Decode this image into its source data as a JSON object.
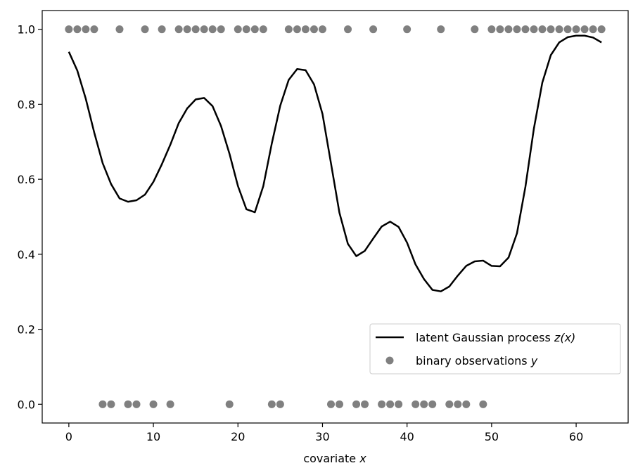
{
  "chart_data": {
    "type": "line",
    "title": "",
    "xlabel": "covariate x",
    "ylabel": "",
    "xlim": [
      -3.15,
      66.15
    ],
    "ylim": [
      -0.05,
      1.05
    ],
    "xticks": [
      0,
      10,
      20,
      30,
      40,
      50,
      60
    ],
    "yticks": [
      0.0,
      0.2,
      0.4,
      0.6,
      0.8,
      1.0
    ],
    "xtick_labels": [
      "0",
      "10",
      "20",
      "30",
      "40",
      "50",
      "60"
    ],
    "ytick_labels": [
      "0.0",
      "0.2",
      "0.4",
      "0.6",
      "0.8",
      "1.0"
    ],
    "grid": false,
    "legend_position": "lower-right",
    "series": [
      {
        "name": "latent Gaussian process z(x)",
        "type": "line",
        "color": "#000000",
        "x": [
          0,
          1,
          2,
          3,
          4,
          5,
          6,
          7,
          8,
          9,
          10,
          11,
          12,
          13,
          14,
          15,
          16,
          17,
          18,
          19,
          20,
          21,
          22,
          23,
          24,
          25,
          26,
          27,
          28,
          29,
          30,
          31,
          32,
          33,
          34,
          35,
          36,
          37,
          38,
          39,
          40,
          41,
          42,
          43,
          44,
          45,
          46,
          47,
          48,
          49,
          50,
          51,
          52,
          53,
          54,
          55,
          56,
          57,
          58,
          59,
          60,
          61,
          62,
          63
        ],
        "y": [
          0.94,
          0.89,
          0.815,
          0.725,
          0.643,
          0.587,
          0.549,
          0.54,
          0.544,
          0.559,
          0.593,
          0.64,
          0.692,
          0.75,
          0.789,
          0.813,
          0.817,
          0.795,
          0.742,
          0.668,
          0.582,
          0.52,
          0.512,
          0.582,
          0.695,
          0.796,
          0.865,
          0.894,
          0.891,
          0.853,
          0.774,
          0.643,
          0.511,
          0.428,
          0.395,
          0.409,
          0.442,
          0.474,
          0.487,
          0.473,
          0.431,
          0.373,
          0.334,
          0.305,
          0.301,
          0.314,
          0.343,
          0.369,
          0.381,
          0.383,
          0.369,
          0.368,
          0.391,
          0.456,
          0.58,
          0.735,
          0.858,
          0.931,
          0.965,
          0.979,
          0.983,
          0.983,
          0.978,
          0.965
        ]
      },
      {
        "name": "binary observations y",
        "type": "scatter",
        "color": "#808080",
        "x": [
          0,
          1,
          2,
          3,
          4,
          5,
          6,
          7,
          8,
          9,
          10,
          11,
          12,
          13,
          14,
          15,
          16,
          17,
          18,
          19,
          20,
          21,
          22,
          23,
          24,
          25,
          26,
          27,
          28,
          29,
          30,
          31,
          32,
          33,
          34,
          35,
          36,
          37,
          38,
          39,
          40,
          41,
          42,
          43,
          44,
          45,
          46,
          47,
          48,
          49,
          50,
          51,
          52,
          53,
          54,
          55,
          56,
          57,
          58,
          59,
          60,
          61,
          62,
          63
        ],
        "y": [
          1,
          1,
          1,
          1,
          0,
          0,
          1,
          0,
          0,
          1,
          0,
          1,
          0,
          1,
          1,
          1,
          1,
          1,
          1,
          0,
          1,
          1,
          1,
          1,
          0,
          0,
          1,
          1,
          1,
          1,
          1,
          0,
          0,
          1,
          0,
          0,
          1,
          0,
          0,
          0,
          1,
          0,
          0,
          0,
          1,
          0,
          0,
          0,
          1,
          0,
          1,
          1,
          1,
          1,
          1,
          1,
          1,
          1,
          1,
          1,
          1,
          1,
          1,
          1
        ]
      }
    ],
    "legend": {
      "entries": [
        {
          "text": "latent Gaussian process ",
          "math": "z(x)"
        },
        {
          "text": "binary observations ",
          "math": "y"
        }
      ]
    }
  }
}
